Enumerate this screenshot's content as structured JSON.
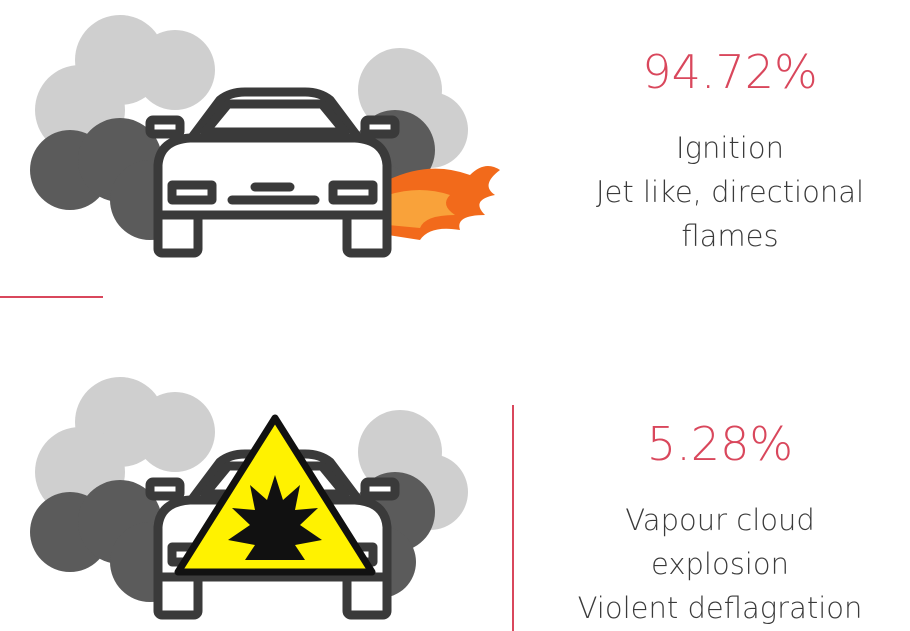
{
  "items": [
    {
      "percent": "94.72%",
      "lines": [
        "Ignition",
        "Jet like, directional",
        "flames"
      ]
    },
    {
      "percent": "5.28%",
      "lines": [
        "Vapour cloud",
        "explosion",
        "Violent deflagration"
      ]
    }
  ]
}
